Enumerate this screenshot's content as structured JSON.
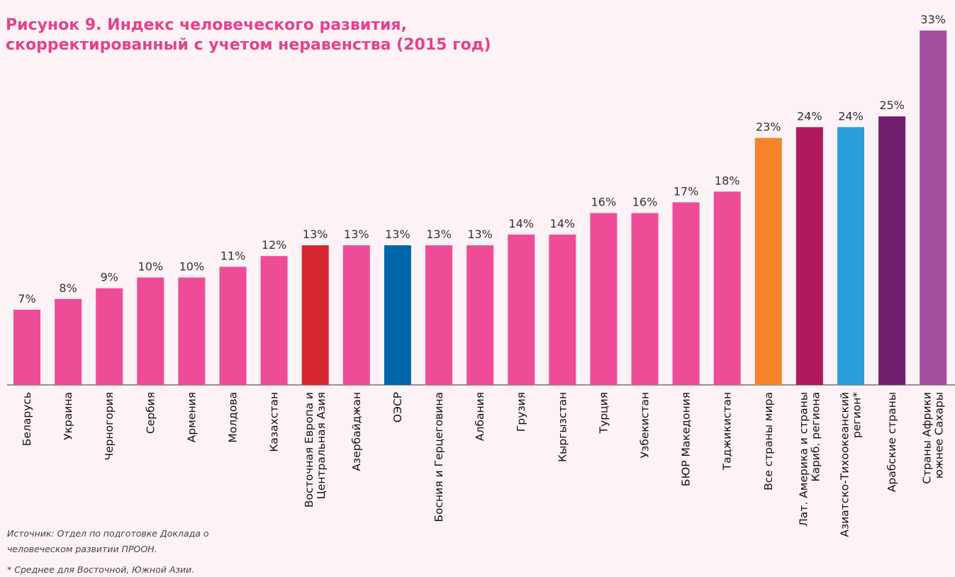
{
  "chart_data": {
    "type": "bar",
    "title": "Рисунок 9. Индекс человеческого развития,\nскорректированный с учетом неравенства (2015 год)",
    "categories": [
      "Беларусь",
      "Украина",
      "Черногория",
      "Сербия",
      "Армения",
      "Молдова",
      "Казахстан",
      "Восточная Европа и\nЦентральная Азия",
      "Азербайджан",
      "ОЭСР",
      "Босния и Герцеговина",
      "Албания",
      "Грузия",
      "Кыргызстан",
      "Турция",
      "Узбекистан",
      "БЮР Македония",
      "Таджикистан",
      "Все страны мира",
      "Лат. Америка и страны\nКариб. региона",
      "Азиатско-Тихоокеанский\nрегион*",
      "Арабские страны",
      "Страны Африки\nюжнее Сахары"
    ],
    "values": [
      7,
      8,
      9,
      10,
      10,
      11,
      12,
      13,
      13,
      13,
      13,
      13,
      14,
      14,
      16,
      16,
      17,
      18,
      23,
      24,
      24,
      25,
      33
    ],
    "value_labels": [
      "7%",
      "8%",
      "9%",
      "10%",
      "10%",
      "11%",
      "12%",
      "13%",
      "13%",
      "13%",
      "13%",
      "13%",
      "14%",
      "14%",
      "16%",
      "16%",
      "17%",
      "18%",
      "23%",
      "24%",
      "24%",
      "25%",
      "33%"
    ],
    "colors": [
      "#ef4c97",
      "#ef4c97",
      "#ef4c97",
      "#ef4c97",
      "#ef4c97",
      "#ef4c97",
      "#ef4c97",
      "#d7262f",
      "#ef4c97",
      "#0067ab",
      "#ef4c97",
      "#ef4c97",
      "#ef4c97",
      "#ef4c97",
      "#ef4c97",
      "#ef4c97",
      "#ef4c97",
      "#ef4c97",
      "#f6842b",
      "#b0195c",
      "#2a9fd9",
      "#6f1f6b",
      "#a5509f"
    ],
    "ylim": [
      0,
      33
    ],
    "notes": [
      "Источник: Отдел по подготовке Доклада о\nчеловеческом развитии ПРООН.",
      "* Среднее для Восточной, Южной Азии."
    ]
  }
}
